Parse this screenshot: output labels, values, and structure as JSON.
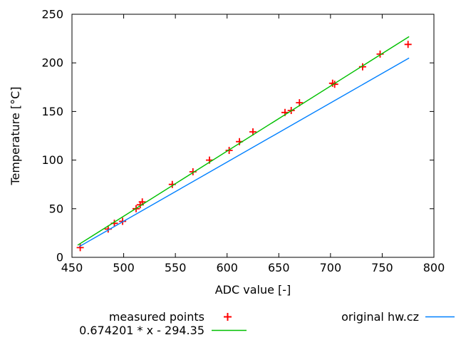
{
  "chart_data": {
    "type": "scatter",
    "title": "",
    "xlabel": "ADC value [-]",
    "ylabel": "Temperature [°C]",
    "xlim": [
      450,
      800
    ],
    "ylim": [
      0,
      250
    ],
    "x_ticks": [
      450,
      500,
      550,
      600,
      650,
      700,
      750,
      800
    ],
    "y_ticks": [
      0,
      50,
      100,
      150,
      200,
      250
    ],
    "grid": false,
    "legend_position": "below",
    "background_color": "#ffffff",
    "text_color": "#000000",
    "border_color": "#000000",
    "series": [
      {
        "name": "measured points",
        "type": "scatter",
        "marker": "plus",
        "color": "#ff0000",
        "points": [
          [
            458,
            10
          ],
          [
            485,
            29
          ],
          [
            491,
            35
          ],
          [
            499,
            37
          ],
          [
            512,
            50
          ],
          [
            516,
            54
          ],
          [
            518,
            57
          ],
          [
            547,
            75
          ],
          [
            567,
            88
          ],
          [
            583,
            100
          ],
          [
            602,
            110
          ],
          [
            612,
            119
          ],
          [
            625,
            129
          ],
          [
            656,
            149
          ],
          [
            662,
            151
          ],
          [
            670,
            159
          ],
          [
            702,
            179
          ],
          [
            704,
            178
          ],
          [
            731,
            196
          ],
          [
            748,
            209
          ],
          [
            775,
            219
          ]
        ]
      },
      {
        "name": "0.674201 * x - 294.35",
        "type": "line",
        "color": "#00c000",
        "points": [
          [
            455.5,
            12.5
          ],
          [
            776,
            227
          ]
        ]
      },
      {
        "name": "original hw.cz",
        "type": "line",
        "color": "#0080ff",
        "points": [
          [
            457,
            11
          ],
          [
            776,
            205
          ]
        ]
      }
    ]
  }
}
